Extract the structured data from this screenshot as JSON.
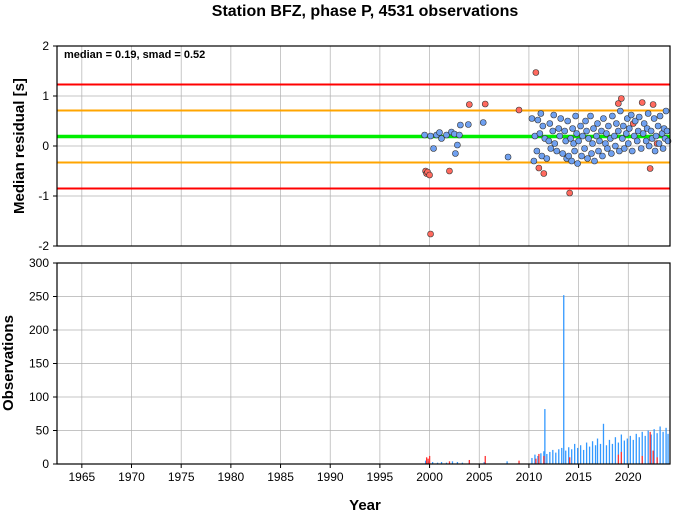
{
  "title": "Station BFZ, phase P, 4531 observations",
  "chart_data": [
    {
      "type": "scatter",
      "ylabel": "Median residual [s]",
      "xlim": [
        1962.5,
        2024.2
      ],
      "ylim": [
        -2,
        2
      ],
      "yticks": [
        -2,
        -1,
        0,
        1,
        2
      ],
      "annotation": "median = 0.19, smad = 0.52",
      "grid": true,
      "reference_lines": [
        {
          "y": 1.23,
          "color": "#ff0000"
        },
        {
          "y": 0.71,
          "color": "#ffa500"
        },
        {
          "y": 0.19,
          "color": "#00ee00"
        },
        {
          "y": -0.33,
          "color": "#ffa500"
        },
        {
          "y": -0.85,
          "color": "#ff0000"
        }
      ],
      "series": [
        {
          "color": "#ff6a5f",
          "points": [
            [
              1999.6,
              -0.5
            ],
            [
              1999.7,
              -0.55
            ],
            [
              1999.8,
              -0.52
            ],
            [
              2000.0,
              -0.58
            ],
            [
              2000.1,
              -1.76
            ],
            [
              2002.0,
              -0.5
            ],
            [
              2004.0,
              0.83
            ],
            [
              2005.6,
              0.84
            ],
            [
              2009.0,
              0.72
            ],
            [
              2010.7,
              1.47
            ],
            [
              2011.0,
              -0.44
            ],
            [
              2011.5,
              -0.55
            ],
            [
              2014.1,
              -0.94
            ],
            [
              2019.0,
              0.85
            ],
            [
              2019.3,
              0.95
            ],
            [
              2020.5,
              0.45
            ],
            [
              2021.4,
              0.87
            ],
            [
              2022.2,
              -0.45
            ],
            [
              2022.5,
              0.83
            ],
            [
              2022.9,
              0.05
            ]
          ]
        },
        {
          "color": "#6fa0f0",
          "points": [
            [
              1999.5,
              0.22
            ],
            [
              2000.1,
              0.2
            ],
            [
              2000.4,
              -0.05
            ],
            [
              2000.7,
              0.22
            ],
            [
              2001.0,
              0.27
            ],
            [
              2001.2,
              0.15
            ],
            [
              2001.7,
              0.22
            ],
            [
              2002.2,
              0.28
            ],
            [
              2002.5,
              0.24
            ],
            [
              2002.6,
              -0.15
            ],
            [
              2002.8,
              0.02
            ],
            [
              2003.0,
              0.22
            ],
            [
              2003.1,
              0.42
            ],
            [
              2003.9,
              0.43
            ],
            [
              2005.4,
              0.47
            ],
            [
              2007.9,
              -0.22
            ],
            [
              2010.3,
              0.55
            ],
            [
              2010.5,
              -0.3
            ],
            [
              2010.6,
              0.2
            ],
            [
              2010.8,
              -0.1
            ],
            [
              2010.9,
              0.52
            ],
            [
              2011.1,
              0.25
            ],
            [
              2011.2,
              0.65
            ],
            [
              2011.3,
              -0.2
            ],
            [
              2011.4,
              0.4
            ],
            [
              2011.6,
              0.15
            ],
            [
              2011.8,
              -0.25
            ],
            [
              2012.0,
              0.1
            ],
            [
              2012.1,
              0.45
            ],
            [
              2012.2,
              -0.05
            ],
            [
              2012.4,
              0.3
            ],
            [
              2012.5,
              0.62
            ],
            [
              2012.6,
              0.05
            ],
            [
              2012.8,
              -0.1
            ],
            [
              2013.0,
              0.35
            ],
            [
              2013.1,
              0.2
            ],
            [
              2013.2,
              0.55
            ],
            [
              2013.4,
              -0.15
            ],
            [
              2013.6,
              0.3
            ],
            [
              2013.7,
              0.1
            ],
            [
              2013.8,
              -0.25
            ],
            [
              2013.9,
              0.5
            ],
            [
              2014.0,
              -0.2
            ],
            [
              2014.2,
              0.15
            ],
            [
              2014.3,
              -0.3
            ],
            [
              2014.4,
              0.35
            ],
            [
              2014.5,
              0.05
            ],
            [
              2014.6,
              -0.1
            ],
            [
              2014.7,
              0.6
            ],
            [
              2014.8,
              0.25
            ],
            [
              2014.9,
              -0.35
            ],
            [
              2015.0,
              0.1
            ],
            [
              2015.2,
              0.4
            ],
            [
              2015.3,
              -0.2
            ],
            [
              2015.4,
              0.2
            ],
            [
              2015.6,
              -0.05
            ],
            [
              2015.7,
              0.5
            ],
            [
              2015.8,
              0.3
            ],
            [
              2015.9,
              -0.25
            ],
            [
              2016.0,
              0.15
            ],
            [
              2016.2,
              0.6
            ],
            [
              2016.3,
              -0.15
            ],
            [
              2016.4,
              0.05
            ],
            [
              2016.5,
              0.35
            ],
            [
              2016.6,
              -0.3
            ],
            [
              2016.8,
              0.2
            ],
            [
              2016.9,
              0.45
            ],
            [
              2017.0,
              -0.1
            ],
            [
              2017.1,
              0.1
            ],
            [
              2017.3,
              0.3
            ],
            [
              2017.4,
              -0.2
            ],
            [
              2017.5,
              0.55
            ],
            [
              2017.7,
              0.05
            ],
            [
              2017.8,
              0.25
            ],
            [
              2017.9,
              -0.05
            ],
            [
              2018.0,
              0.4
            ],
            [
              2018.2,
              0.15
            ],
            [
              2018.3,
              -0.15
            ],
            [
              2018.4,
              0.6
            ],
            [
              2018.6,
              0.2
            ],
            [
              2018.7,
              0.0
            ],
            [
              2018.8,
              0.45
            ],
            [
              2019.0,
              0.3
            ],
            [
              2019.1,
              -0.1
            ],
            [
              2019.2,
              0.7
            ],
            [
              2019.4,
              0.15
            ],
            [
              2019.5,
              0.4
            ],
            [
              2019.6,
              -0.05
            ],
            [
              2019.8,
              0.25
            ],
            [
              2019.9,
              0.55
            ],
            [
              2020.0,
              0.05
            ],
            [
              2020.1,
              0.35
            ],
            [
              2020.3,
              0.62
            ],
            [
              2020.4,
              -0.1
            ],
            [
              2020.6,
              0.2
            ],
            [
              2020.7,
              0.5
            ],
            [
              2020.9,
              0.1
            ],
            [
              2021.0,
              0.3
            ],
            [
              2021.1,
              0.58
            ],
            [
              2021.3,
              -0.05
            ],
            [
              2021.5,
              0.25
            ],
            [
              2021.6,
              0.45
            ],
            [
              2021.8,
              0.1
            ],
            [
              2021.9,
              0.35
            ],
            [
              2022.0,
              0.65
            ],
            [
              2022.1,
              0.0
            ],
            [
              2022.3,
              0.3
            ],
            [
              2022.4,
              0.15
            ],
            [
              2022.6,
              0.55
            ],
            [
              2022.7,
              -0.1
            ],
            [
              2022.8,
              0.2
            ],
            [
              2023.0,
              0.4
            ],
            [
              2023.1,
              0.05
            ],
            [
              2023.2,
              0.6
            ],
            [
              2023.4,
              0.25
            ],
            [
              2023.5,
              -0.05
            ],
            [
              2023.6,
              0.35
            ],
            [
              2023.7,
              0.15
            ],
            [
              2023.8,
              0.7
            ],
            [
              2023.9,
              0.3
            ],
            [
              2024.0,
              0.1
            ]
          ]
        }
      ]
    },
    {
      "type": "bar",
      "xlabel": "Year",
      "ylabel": "Observations",
      "xlim": [
        1962.5,
        2024.2
      ],
      "ylim": [
        0,
        300
      ],
      "xticks": [
        1965,
        1970,
        1975,
        1980,
        1985,
        1990,
        1995,
        2000,
        2005,
        2010,
        2015,
        2020
      ],
      "yticks": [
        0,
        50,
        100,
        150,
        200,
        250,
        300
      ],
      "grid": true,
      "series": [
        {
          "color": "#3399ff",
          "values": [
            [
              1999.6,
              5
            ],
            [
              1999.9,
              4
            ],
            [
              2000.3,
              3
            ],
            [
              2000.8,
              2
            ],
            [
              2001.2,
              3
            ],
            [
              2001.7,
              2
            ],
            [
              2002.3,
              4
            ],
            [
              2002.8,
              3
            ],
            [
              2003.3,
              2
            ],
            [
              2004.0,
              5
            ],
            [
              2005.5,
              3
            ],
            [
              2007.8,
              4
            ],
            [
              2010.3,
              9
            ],
            [
              2010.6,
              14
            ],
            [
              2010.9,
              12
            ],
            [
              2011.2,
              16
            ],
            [
              2011.5,
              19
            ],
            [
              2011.6,
              82
            ],
            [
              2011.8,
              15
            ],
            [
              2012.1,
              18
            ],
            [
              2012.4,
              21
            ],
            [
              2012.7,
              17
            ],
            [
              2013.0,
              22
            ],
            [
              2013.3,
              24
            ],
            [
              2013.5,
              252
            ],
            [
              2013.7,
              20
            ],
            [
              2014.0,
              25
            ],
            [
              2014.3,
              22
            ],
            [
              2014.6,
              30
            ],
            [
              2014.9,
              24
            ],
            [
              2015.2,
              28
            ],
            [
              2015.5,
              21
            ],
            [
              2015.8,
              32
            ],
            [
              2016.1,
              26
            ],
            [
              2016.4,
              34
            ],
            [
              2016.7,
              28
            ],
            [
              2016.9,
              38
            ],
            [
              2017.2,
              30
            ],
            [
              2017.5,
              60
            ],
            [
              2017.8,
              28
            ],
            [
              2018.1,
              36
            ],
            [
              2018.4,
              30
            ],
            [
              2018.7,
              40
            ],
            [
              2019.0,
              32
            ],
            [
              2019.3,
              44
            ],
            [
              2019.6,
              35
            ],
            [
              2019.9,
              38
            ],
            [
              2020.2,
              42
            ],
            [
              2020.5,
              36
            ],
            [
              2020.8,
              45
            ],
            [
              2021.1,
              40
            ],
            [
              2021.4,
              48
            ],
            [
              2021.7,
              42
            ],
            [
              2022.0,
              50
            ],
            [
              2022.3,
              44
            ],
            [
              2022.6,
              52
            ],
            [
              2022.9,
              46
            ],
            [
              2023.2,
              56
            ],
            [
              2023.5,
              48
            ],
            [
              2023.8,
              54
            ],
            [
              2024.0,
              45
            ]
          ]
        },
        {
          "color": "#ff3333",
          "values": [
            [
              1999.7,
              10
            ],
            [
              1999.85,
              8
            ],
            [
              2000.0,
              12
            ],
            [
              2002.0,
              4
            ],
            [
              2004.0,
              6
            ],
            [
              2005.6,
              12
            ],
            [
              2009.0,
              5
            ],
            [
              2010.7,
              8
            ],
            [
              2011.0,
              15
            ],
            [
              2011.5,
              12
            ],
            [
              2014.1,
              10
            ],
            [
              2019.0,
              14
            ],
            [
              2019.3,
              18
            ],
            [
              2021.4,
              12
            ],
            [
              2022.2,
              48
            ],
            [
              2022.5,
              20
            ],
            [
              2022.9,
              10
            ]
          ]
        }
      ]
    }
  ]
}
